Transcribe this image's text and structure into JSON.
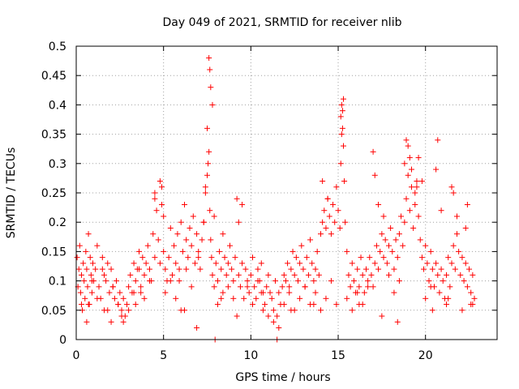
{
  "chart_data": {
    "type": "scatter",
    "title": "Day 049 of 2021, SRMTID for receiver nlib",
    "xlabel": "GPS time / hours",
    "ylabel": "SRMTID / TECUs",
    "xlim": [
      0,
      24.1
    ],
    "ylim": [
      0,
      0.5
    ],
    "x_ticks": [
      0,
      5,
      10,
      15,
      20
    ],
    "x_tick_labels": [
      "0",
      "5",
      "10",
      "15",
      "20"
    ],
    "y_ticks": [
      0,
      0.05,
      0.1,
      0.15,
      0.2,
      0.25,
      0.3,
      0.35,
      0.4,
      0.45,
      0.5
    ],
    "y_tick_labels": [
      "0",
      "0.05",
      "0.1",
      "0.15",
      "0.2",
      "0.25",
      "0.3",
      "0.35",
      "0.4",
      "0.45",
      "0.5"
    ],
    "grid": true,
    "marker": "+",
    "color": "#ff0000",
    "series": [
      {
        "name": "SRMTID",
        "x": [
          0.05,
          0.1,
          0.15,
          0.2,
          0.25,
          0.3,
          0.35,
          0.4,
          0.45,
          0.5,
          0.55,
          0.6,
          0.65,
          0.7,
          0.75,
          0.8,
          0.85,
          0.9,
          0.95,
          1.0,
          1.1,
          1.2,
          1.3,
          1.4,
          1.5,
          1.6,
          1.7,
          1.8,
          1.9,
          2.0,
          2.1,
          2.2,
          2.3,
          2.4,
          2.5,
          2.6,
          2.7,
          2.8,
          2.9,
          3.0,
          3.1,
          3.2,
          3.3,
          3.4,
          3.5,
          3.6,
          3.7,
          3.8,
          3.9,
          4.0,
          4.1,
          4.2,
          4.3,
          4.4,
          4.5,
          4.6,
          4.7,
          4.8,
          4.9,
          5.0,
          5.1,
          5.2,
          5.3,
          5.4,
          5.5,
          5.6,
          5.7,
          5.8,
          5.9,
          6.0,
          6.1,
          6.2,
          6.3,
          6.4,
          6.5,
          6.6,
          6.7,
          6.8,
          6.9,
          7.0,
          7.1,
          7.2,
          7.3,
          7.4,
          7.5,
          7.55,
          7.6,
          7.65,
          7.7,
          7.75,
          7.8,
          7.9,
          8.0,
          8.1,
          8.2,
          8.3,
          8.4,
          8.5,
          8.6,
          8.7,
          8.8,
          8.9,
          9.0,
          9.1,
          9.2,
          9.3,
          9.4,
          9.5,
          9.6,
          9.7,
          9.8,
          9.9,
          10.0,
          10.1,
          10.2,
          10.3,
          10.4,
          10.5,
          10.6,
          10.7,
          10.8,
          10.9,
          11.0,
          11.1,
          11.2,
          11.3,
          11.4,
          11.5,
          11.6,
          11.7,
          11.8,
          11.9,
          12.0,
          12.1,
          12.2,
          12.3,
          12.4,
          12.5,
          12.6,
          12.7,
          12.8,
          12.9,
          13.0,
          13.1,
          13.2,
          13.3,
          13.4,
          13.5,
          13.6,
          13.7,
          13.8,
          13.9,
          14.0,
          14.1,
          14.2,
          14.3,
          14.4,
          14.5,
          14.6,
          14.7,
          14.8,
          14.9,
          15.0,
          15.1,
          15.15,
          15.2,
          15.25,
          15.3,
          15.35,
          15.4,
          15.5,
          15.6,
          15.7,
          15.8,
          15.9,
          16.0,
          16.1,
          16.2,
          16.3,
          16.4,
          16.5,
          16.6,
          16.7,
          16.8,
          16.9,
          17.0,
          17.1,
          17.2,
          17.3,
          17.4,
          17.5,
          17.6,
          17.7,
          17.8,
          17.9,
          18.0,
          18.1,
          18.2,
          18.3,
          18.4,
          18.5,
          18.6,
          18.7,
          18.8,
          18.9,
          19.0,
          19.1,
          19.2,
          19.3,
          19.4,
          19.5,
          19.6,
          19.7,
          19.8,
          19.9,
          20.0,
          20.1,
          20.2,
          20.3,
          20.4,
          20.5,
          20.6,
          20.7,
          20.8,
          20.9,
          21.0,
          21.1,
          21.2,
          21.3,
          21.4,
          21.5,
          21.6,
          21.7,
          21.8,
          21.9,
          22.0,
          22.1,
          22.2,
          22.3,
          22.4,
          22.5,
          22.6,
          22.7,
          22.8,
          0.3,
          0.6,
          0.9,
          1.2,
          1.5,
          1.8,
          2.1,
          2.4,
          2.7,
          3.0,
          3.3,
          3.6,
          3.9,
          4.2,
          4.5,
          4.8,
          4.9,
          5.0,
          5.1,
          5.4,
          5.7,
          6.0,
          6.3,
          6.6,
          7.0,
          7.3,
          7.5,
          7.6,
          7.65,
          7.7,
          7.8,
          8.1,
          8.4,
          8.7,
          9.0,
          9.3,
          9.5,
          9.8,
          10.1,
          10.4,
          10.7,
          11.0,
          11.3,
          11.6,
          11.9,
          12.2,
          12.5,
          12.8,
          13.1,
          13.4,
          13.7,
          14.0,
          14.3,
          14.6,
          14.9,
          15.2,
          15.3,
          15.5,
          15.8,
          16.1,
          16.4,
          16.7,
          17.0,
          17.1,
          17.3,
          17.6,
          17.9,
          18.2,
          18.5,
          18.8,
          18.9,
          19.0,
          19.2,
          19.4,
          19.6,
          19.8,
          20.0,
          20.3,
          20.6,
          20.7,
          20.9,
          21.2,
          21.5,
          21.8,
          22.1,
          22.4,
          22.7,
          7.4,
          7.9,
          14.1,
          14.4,
          15.15,
          15.25,
          19.1,
          19.5,
          21.6,
          22.3,
          11.5,
          7.95,
          4.5,
          2.0,
          2.6,
          3.4,
          6.2,
          6.9,
          8.3,
          9.2,
          10.6,
          12.3,
          13.6,
          16.2,
          17.5,
          18.4,
          20.4,
          21.3,
          22.6,
          0.7,
          1.6,
          3.7,
          5.9
        ],
        "y": [
          0.14,
          0.09,
          0.12,
          0.16,
          0.08,
          0.11,
          0.05,
          0.13,
          0.1,
          0.07,
          0.15,
          0.12,
          0.09,
          0.18,
          0.06,
          0.14,
          0.11,
          0.08,
          0.13,
          0.1,
          0.12,
          0.16,
          0.09,
          0.07,
          0.14,
          0.11,
          0.1,
          0.13,
          0.08,
          0.12,
          0.09,
          0.07,
          0.1,
          0.06,
          0.08,
          0.05,
          0.07,
          0.04,
          0.06,
          0.09,
          0.11,
          0.08,
          0.13,
          0.1,
          0.12,
          0.15,
          0.09,
          0.14,
          0.11,
          0.13,
          0.16,
          0.12,
          0.1,
          0.18,
          0.14,
          0.22,
          0.17,
          0.13,
          0.26,
          0.15,
          0.12,
          0.1,
          0.14,
          0.19,
          0.11,
          0.16,
          0.13,
          0.18,
          0.12,
          0.2,
          0.15,
          0.23,
          0.17,
          0.14,
          0.19,
          0.16,
          0.21,
          0.13,
          0.18,
          0.15,
          0.12,
          0.17,
          0.2,
          0.25,
          0.28,
          0.3,
          0.32,
          0.22,
          0.17,
          0.14,
          0.11,
          0.09,
          0.13,
          0.1,
          0.15,
          0.12,
          0.08,
          0.14,
          0.11,
          0.09,
          0.16,
          0.12,
          0.1,
          0.14,
          0.24,
          0.11,
          0.09,
          0.13,
          0.07,
          0.12,
          0.1,
          0.08,
          0.11,
          0.14,
          0.09,
          0.07,
          0.12,
          0.1,
          0.13,
          0.08,
          0.06,
          0.09,
          0.11,
          0.08,
          0.07,
          0.05,
          0.1,
          0.04,
          0.08,
          0.06,
          0.09,
          0.11,
          0.1,
          0.13,
          0.09,
          0.12,
          0.15,
          0.11,
          0.14,
          0.1,
          0.13,
          0.16,
          0.12,
          0.09,
          0.14,
          0.11,
          0.17,
          0.13,
          0.1,
          0.12,
          0.15,
          0.11,
          0.18,
          0.2,
          0.22,
          0.19,
          0.24,
          0.21,
          0.18,
          0.23,
          0.2,
          0.26,
          0.22,
          0.19,
          0.3,
          0.35,
          0.39,
          0.41,
          0.27,
          0.2,
          0.15,
          0.11,
          0.09,
          0.13,
          0.1,
          0.08,
          0.12,
          0.09,
          0.14,
          0.11,
          0.08,
          0.12,
          0.1,
          0.14,
          0.11,
          0.09,
          0.13,
          0.16,
          0.12,
          0.15,
          0.18,
          0.14,
          0.17,
          0.13,
          0.16,
          0.19,
          0.15,
          0.12,
          0.17,
          0.14,
          0.18,
          0.21,
          0.16,
          0.2,
          0.24,
          0.28,
          0.22,
          0.26,
          0.19,
          0.23,
          0.27,
          0.21,
          0.17,
          0.14,
          0.12,
          0.16,
          0.13,
          0.1,
          0.15,
          0.12,
          0.09,
          0.13,
          0.11,
          0.08,
          0.12,
          0.1,
          0.07,
          0.11,
          0.14,
          0.09,
          0.13,
          0.16,
          0.12,
          0.18,
          0.15,
          0.11,
          0.14,
          0.1,
          0.13,
          0.09,
          0.12,
          0.08,
          0.11,
          0.07,
          0.06,
          0.03,
          0.1,
          0.07,
          0.12,
          0.05,
          0.09,
          0.06,
          0.03,
          0.05,
          0.08,
          0.12,
          0.07,
          0.1,
          0.24,
          0.27,
          0.23,
          0.21,
          0.08,
          0.1,
          0.07,
          0.05,
          0.12,
          0.09,
          0.14,
          0.2,
          0.36,
          0.48,
          0.46,
          0.43,
          0.4,
          0.06,
          0.18,
          0.13,
          0.07,
          0.2,
          0.23,
          0.09,
          0.06,
          0.1,
          0.05,
          0.04,
          0.03,
          0.02,
          0.06,
          0.08,
          0.05,
          0.07,
          0.09,
          0.06,
          0.08,
          0.05,
          0.07,
          0.1,
          0.06,
          0.4,
          0.33,
          0.07,
          0.05,
          0.08,
          0.06,
          0.09,
          0.32,
          0.28,
          0.23,
          0.21,
          0.11,
          0.08,
          0.1,
          0.3,
          0.34,
          0.33,
          0.29,
          0.25,
          0.31,
          0.27,
          0.07,
          0.09,
          0.29,
          0.34,
          0.22,
          0.06,
          0.26,
          0.21,
          0.05,
          0.23,
          0.06,
          0.26,
          0.21,
          0.27,
          0.24,
          0.38,
          0.36,
          0.31,
          0.26,
          0.25,
          0.19,
          0.0,
          0.0,
          0.25,
          0.03,
          0.04,
          0.06,
          0.05,
          0.02,
          0.07,
          0.04,
          0.08,
          0.05,
          0.06,
          0.06,
          0.04,
          0.03,
          0.05,
          0.07,
          0.06,
          0.06,
          0.05,
          0.08,
          0.1
        ]
      }
    ]
  }
}
